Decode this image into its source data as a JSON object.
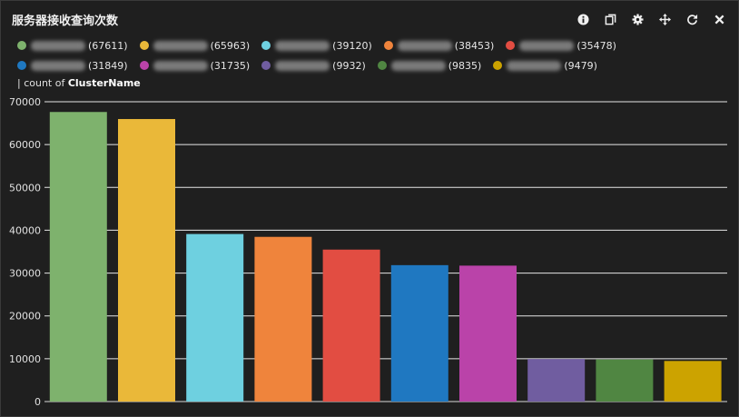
{
  "panel": {
    "title": "服务器接收查询次数"
  },
  "toolbar": {
    "buttons": [
      {
        "name": "info-button",
        "icon": "info-icon"
      },
      {
        "name": "copy-button",
        "icon": "copy-icon"
      },
      {
        "name": "settings-button",
        "icon": "gear-icon"
      },
      {
        "name": "move-button",
        "icon": "move-icon"
      },
      {
        "name": "refresh-button",
        "icon": "refresh-icon"
      },
      {
        "name": "close-button",
        "icon": "close-icon"
      }
    ]
  },
  "subtitle": {
    "prefix": "| count of ",
    "field": "ClusterName"
  },
  "chart_data": {
    "type": "bar",
    "title": "服务器接收查询次数",
    "ylabel": "count of ClusterName",
    "ylim": [
      0,
      70000
    ],
    "yticks": [
      "0",
      "10000",
      "20000",
      "30000",
      "40000",
      "50000",
      "60000",
      "70000"
    ],
    "grid": true,
    "legend_position": "top",
    "values": [
      67611,
      65963,
      39120,
      38453,
      35478,
      31849,
      31735,
      9932,
      9835,
      9479
    ],
    "colors": [
      "#7eb26d",
      "#eab839",
      "#6ed0e0",
      "#ef843c",
      "#e24d42",
      "#1f78c1",
      "#ba43a9",
      "#705da0",
      "#508642",
      "#cca300"
    ],
    "legend": [
      {
        "count": "(67611)"
      },
      {
        "count": "(65963)"
      },
      {
        "count": "(39120)"
      },
      {
        "count": "(38453)"
      },
      {
        "count": "(35478)"
      },
      {
        "count": "(31849)"
      },
      {
        "count": "(31735)"
      },
      {
        "count": "(9932)"
      },
      {
        "count": "(9835)"
      },
      {
        "count": "(9479)"
      }
    ]
  }
}
